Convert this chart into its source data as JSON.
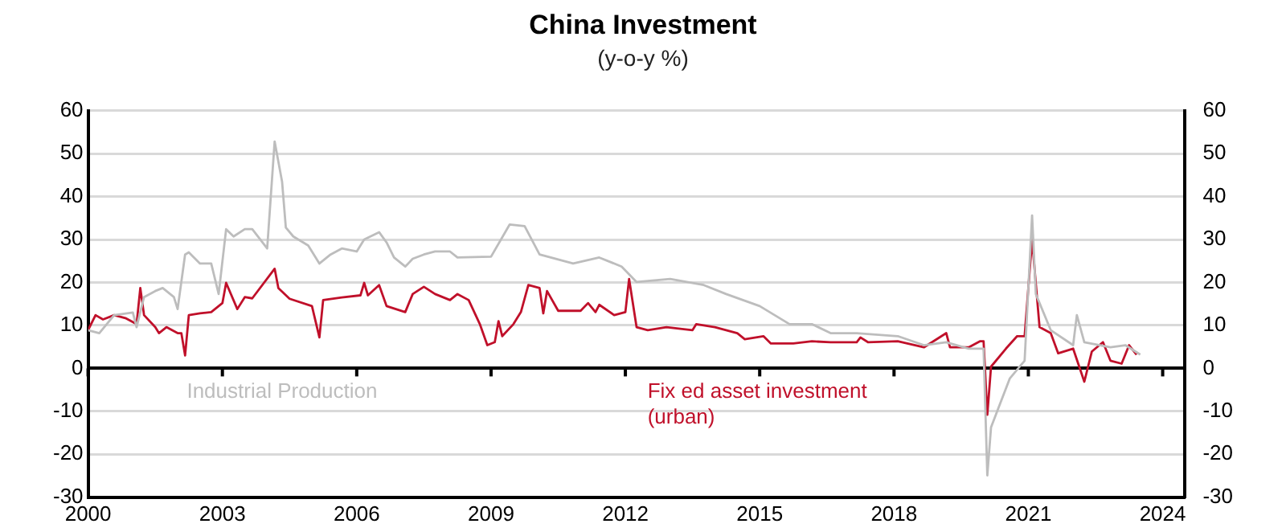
{
  "chart_data": {
    "type": "line",
    "title": "China Investment",
    "subtitle": "(y-o-y %)",
    "xlim": [
      "2000-01",
      "2024-07"
    ],
    "xticks": [
      {
        "value": "2000-01",
        "label": "2000"
      },
      {
        "value": "2003-01",
        "label": "2003"
      },
      {
        "value": "2006-01",
        "label": "2006"
      },
      {
        "value": "2009-01",
        "label": "2009"
      },
      {
        "value": "2012-01",
        "label": "2012"
      },
      {
        "value": "2015-01",
        "label": "2015"
      },
      {
        "value": "2018-01",
        "label": "2018"
      },
      {
        "value": "2021-01",
        "label": "2021"
      },
      {
        "value": "2024-01",
        "label": "2024"
      }
    ],
    "ylim": [
      -30,
      60
    ],
    "yticks": [
      -30,
      -20,
      -10,
      0,
      10,
      20,
      30,
      40,
      50,
      60
    ],
    "y2lim": [
      -30,
      60
    ],
    "y2ticks": [
      -30,
      -20,
      -10,
      0,
      10,
      20,
      30,
      40,
      50,
      60
    ],
    "grid": "y",
    "legend": false,
    "marker": "none",
    "line_style": "solid",
    "series": [
      {
        "name": "Industrial Production",
        "color": "#bdbdbd",
        "x": [
          "2000-01",
          "2000-04",
          "2000-08",
          "2001-01",
          "2001-02",
          "2001-04",
          "2001-07",
          "2001-09",
          "2001-12",
          "2002-01",
          "2002-03",
          "2002-04",
          "2002-07",
          "2002-10",
          "2002-12",
          "2003-02",
          "2003-04",
          "2003-07",
          "2003-09",
          "2004-01",
          "2004-03",
          "2004-05",
          "2004-06",
          "2004-08",
          "2004-12",
          "2005-03",
          "2005-06",
          "2005-09",
          "2006-01",
          "2006-03",
          "2006-07",
          "2006-09",
          "2006-11",
          "2007-02",
          "2007-04",
          "2007-07",
          "2007-10",
          "2008-02",
          "2008-04",
          "2009-01",
          "2009-06",
          "2009-10",
          "2010-02",
          "2010-11",
          "2011-06",
          "2011-12",
          "2012-04",
          "2013-01",
          "2013-10",
          "2014-04",
          "2015-01",
          "2015-09",
          "2016-03",
          "2016-08",
          "2017-03",
          "2018-02",
          "2018-09",
          "2019-03",
          "2019-09",
          "2020-01",
          "2020-02",
          "2020-03",
          "2020-08",
          "2020-12",
          "2021-02",
          "2021-03",
          "2021-07",
          "2022-01",
          "2022-02",
          "2022-04",
          "2022-11",
          "2023-03",
          "2023-07"
        ],
        "values": [
          8.9,
          8.2,
          12.4,
          13,
          9.6,
          16.6,
          18,
          18.7,
          16.6,
          13.8,
          26.5,
          27,
          24.4,
          24.4,
          17.3,
          32.4,
          30.7,
          32.4,
          32.4,
          27.9,
          52.8,
          43.4,
          32.8,
          30.7,
          28.6,
          24.4,
          26.5,
          27.9,
          27.2,
          30,
          31.7,
          29.3,
          25.8,
          23.7,
          25.5,
          26.5,
          27.2,
          27.2,
          25.8,
          26,
          33.5,
          33.1,
          26.5,
          24.4,
          25.8,
          23.7,
          20.1,
          20.8,
          19.4,
          17.3,
          14.5,
          10.3,
          10.3,
          8.2,
          8.2,
          7.5,
          5.4,
          6.1,
          4.6,
          4.6,
          -24.9,
          -13.7,
          -2.4,
          1.8,
          35.6,
          17.3,
          8.9,
          5.4,
          12.4,
          6.1,
          4.9,
          5.4,
          3.2
        ]
      },
      {
        "name": "Fix ed asset investment (urban)",
        "color": "#c0102a",
        "x": [
          "2000-01",
          "2000-03",
          "2000-05",
          "2000-08",
          "2000-11",
          "2001-02",
          "2001-03",
          "2001-04",
          "2001-07",
          "2001-08",
          "2001-10",
          "2002-01",
          "2002-02",
          "2002-03",
          "2002-04",
          "2002-07",
          "2002-10",
          "2003-01",
          "2003-02",
          "2003-05",
          "2003-07",
          "2003-09",
          "2004-03",
          "2004-04",
          "2004-07",
          "2005-01",
          "2005-03",
          "2005-04",
          "2005-09",
          "2006-02",
          "2006-03",
          "2006-04",
          "2006-07",
          "2006-09",
          "2007-02",
          "2007-04",
          "2007-07",
          "2007-10",
          "2008-02",
          "2008-04",
          "2008-07",
          "2008-10",
          "2008-12",
          "2009-02",
          "2009-03",
          "2009-04",
          "2009-07",
          "2009-09",
          "2009-11",
          "2010-02",
          "2010-03",
          "2010-04",
          "2010-07",
          "2011-01",
          "2011-03",
          "2011-05",
          "2011-06",
          "2011-10",
          "2012-01",
          "2012-02",
          "2012-04",
          "2012-07",
          "2012-12",
          "2013-07",
          "2013-08",
          "2014-01",
          "2014-07",
          "2014-09",
          "2015-02",
          "2015-04",
          "2015-10",
          "2016-03",
          "2016-08",
          "2017-03",
          "2017-04",
          "2017-06",
          "2018-02",
          "2018-09",
          "2019-03",
          "2019-04",
          "2019-09",
          "2019-12",
          "2020-01",
          "2020-02",
          "2020-03",
          "2020-07",
          "2020-10",
          "2020-12",
          "2021-02",
          "2021-04",
          "2021-07",
          "2021-09",
          "2022-01",
          "2022-04",
          "2022-06",
          "2022-09",
          "2022-11",
          "2023-02",
          "2023-04",
          "2023-06"
        ],
        "values": [
          8.9,
          12.4,
          11.4,
          12.4,
          11.7,
          10.3,
          18.7,
          12.4,
          9.6,
          8.2,
          9.6,
          8.2,
          8.2,
          3,
          12.4,
          12.8,
          13.1,
          15.2,
          19.9,
          13.8,
          16.6,
          16.3,
          23.2,
          18.7,
          16.2,
          14.5,
          7.2,
          15.9,
          16.5,
          17,
          19.9,
          17,
          19.4,
          14.5,
          13.1,
          17.3,
          19,
          17.3,
          15.9,
          17.3,
          15.9,
          10.3,
          5.4,
          6.1,
          11,
          7.5,
          10.3,
          13.1,
          19.4,
          18.7,
          12.8,
          18,
          13.4,
          13.4,
          15.2,
          13.1,
          14.8,
          12.4,
          13.1,
          20.8,
          9.6,
          8.9,
          9.6,
          8.9,
          10.3,
          9.6,
          8.2,
          6.8,
          7.5,
          5.8,
          5.8,
          6.3,
          6.1,
          6.1,
          7.2,
          6.1,
          6.3,
          4.9,
          8.2,
          4.9,
          4.9,
          6.3,
          6.3,
          -10.8,
          0.4,
          4.6,
          7.5,
          7.5,
          30,
          9.6,
          8.2,
          3.5,
          4.6,
          -3.1,
          3.9,
          6.1,
          1.8,
          1.1,
          5.4,
          3.2
        ]
      }
    ]
  }
}
